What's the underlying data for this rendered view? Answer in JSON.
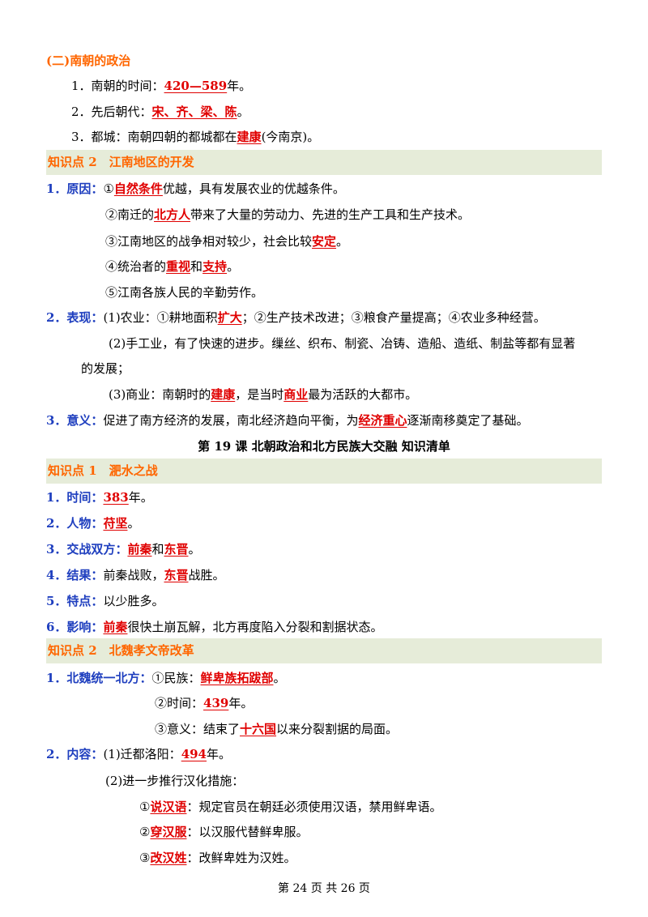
{
  "sec_nanchao": {
    "heading": "(二)南朝的政治",
    "i1_pre": "1．南朝的时间：",
    "i1_ans": "420—589",
    "i1_post": "年。",
    "i2_pre": "2．先后朝代：",
    "i2_ans": "宋、齐、梁、陈",
    "i2_post": "。",
    "i3_pre": "3．都城：南朝四朝的都城都在",
    "i3_ans": "建康",
    "i3_post": "(今南京)。"
  },
  "kp2_jiangnan": {
    "band": "知识点 2　江南地区的开发",
    "reason_label": "1．原因：",
    "r1_pre": "①",
    "r1_ans": "自然条件",
    "r1_post": "优越，具有发展农业的优越条件。",
    "r2_pre": "②南迁的",
    "r2_ans": "北方人",
    "r2_post": "带来了大量的劳动力、先进的生产工具和生产技术。",
    "r3_pre": "③江南地区的战争相对较少，社会比较",
    "r3_ans": "安定",
    "r3_post": "。",
    "r4_pre": "④统治者的",
    "r4_ans": "重视",
    "r4_mid": "和",
    "r4_ans2": "支持",
    "r4_post": "。",
    "r5": "⑤江南各族人民的辛勤劳作。",
    "perf_label": "2．表现：",
    "p1_pre": "(1)农业：①耕地面积",
    "p1_ans": "扩大",
    "p1_post": "；②生产技术改进；③粮食产量提高；④农业多种经营。",
    "p2_a": "(2)手工业，有了快速的进步。缫丝、织布、制瓷、冶铸、造船、造纸、制盐等都有显著",
    "p2_b": "的发展；",
    "p3_pre": "(3)商业：南朝时的",
    "p3_ans": "建康",
    "p3_mid": "，是当时",
    "p3_ans2": "商业",
    "p3_post": "最为活跃的大都市。",
    "sig_label": "3．意义：",
    "sig_pre": "促进了南方经济的发展，南北经济趋向平衡，为",
    "sig_ans": "经济重心",
    "sig_post": "逐渐南移奠定了基础。"
  },
  "lesson_title": "第 19 课  北朝政治和北方民族大交融  知识清单",
  "kp1_feishui": {
    "band": "知识点 1　淝水之战",
    "t_label": "1．时间：",
    "t_ans": "383",
    "t_post": "年。",
    "p_label": "2．人物：",
    "p_ans": "苻坚",
    "p_post": "。",
    "s_label": "3．交战双方：",
    "s_ans": "前秦",
    "s_mid": "和",
    "s_ans2": "东晋",
    "s_post": "。",
    "r_label": "4．结果：",
    "r_pre": "前秦战败，",
    "r_ans": "东晋",
    "r_post": "战胜。",
    "f_label": "5．特点：",
    "f_text": "以少胜多。",
    "i_label": "6．影响：",
    "i_ans": "前秦",
    "i_post": "很快土崩瓦解，北方再度陷入分裂和割据状态。"
  },
  "kp2_xiaowen": {
    "band": "知识点 2　北魏孝文帝改革",
    "u_label": "1．北魏统一北方：",
    "u1_pre": "①民族：",
    "u1_ans": "鲜卑族拓跋部",
    "u1_post": "。",
    "u2_pre": "②时间：",
    "u2_ans": "439",
    "u2_post": "年。",
    "u3_pre": "③意义：结束了",
    "u3_ans": "十六国",
    "u3_post": "以来分裂割据的局面。",
    "c_label": "2．内容：",
    "c1_pre": "(1)迁都洛阳：",
    "c1_ans": "494",
    "c1_post": "年。",
    "c2": "(2)进一步推行汉化措施：",
    "m1_pre": "①",
    "m1_ans": "说汉语",
    "m1_post": "：规定官员在朝廷必须使用汉语，禁用鲜卑语。",
    "m2_pre": "②",
    "m2_ans": "穿汉服",
    "m2_post": "：以汉服代替鲜卑服。",
    "m3_pre": "③",
    "m3_ans": "改汉姓",
    "m3_post": "：改鲜卑姓为汉姓。"
  },
  "footer": "第 24 页 共 26 页"
}
